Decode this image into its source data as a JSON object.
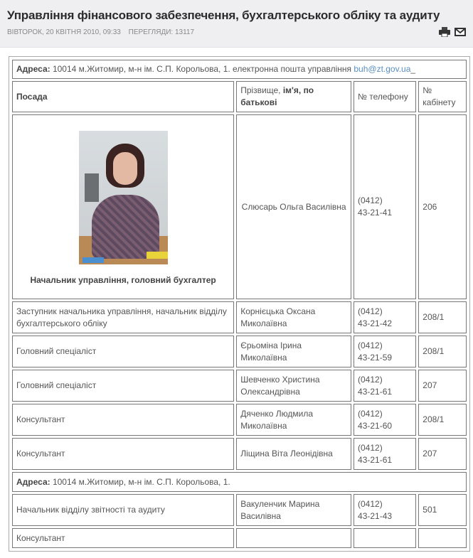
{
  "article": {
    "title": "Управління фінансового забезпечення, бухгалтерського обліку та аудиту",
    "date": "Вівторок, 20 квітня 2010, 09:33",
    "views": "Перегляди: 13117",
    "icons": [
      "print-icon",
      "email-icon"
    ]
  },
  "table": {
    "address1": {
      "label": "Адреса:",
      "text": " 10014 м.Житомир, м-н ім. С.П. Корольова, 1. електронна пошта управління ",
      "email": "buh@zt.gov.ua",
      "suffix": "_"
    },
    "headers": {
      "position": "Посада",
      "name_plain": "Прізвище, ",
      "name_bold": "ім'я, по батькові",
      "phone": "№ телефону",
      "room": "№ кабінету"
    },
    "boss": {
      "position": "Начальник управління, головний бухгалтер",
      "name": "Слюсарь Ольга Василівна",
      "phone1": "(0412)",
      "phone2": "43-21-41",
      "room": "206"
    },
    "rows": [
      {
        "position": "Заступник начальника управління, начальник відділу бухгалтерського обліку",
        "name": "Корнієцька Оксана Миколаївна",
        "phone1": "(0412)",
        "phone2": "43-21-42",
        "room": "208/1"
      },
      {
        "position": "Головний спеціаліст",
        "name": "Єрьоміна Ірина Миколаївна",
        "phone1": "(0412)",
        "phone2": "43-21-59",
        "room": "208/1"
      },
      {
        "position": "Головний спеціаліст",
        "name": "Шевченко Христина Олександрівна",
        "phone1": "(0412)",
        "phone2": "43-21-61",
        "room": "207"
      },
      {
        "position": "Консультант",
        "name": "Дяченко Людмила Миколаївна",
        "phone1": "(0412)",
        "phone2": "43-21-60",
        "room": "208/1"
      },
      {
        "position": "Консультант",
        "name": "Ліщина Віта Леонідівна",
        "phone1": "(0412)",
        "phone2": "43-21-61",
        "room": "207"
      }
    ],
    "address2": {
      "label": "Адреса:",
      "text": " 10014 м.Житомир, м-н ім. С.П. Корольова, 1."
    },
    "rows2": [
      {
        "position": "Начальник відділу звітності та аудиту",
        "name": "Вакуленчик Марина Василівна",
        "phone1": " (0412)",
        "phone2": "43-21-43",
        "room": "501"
      },
      {
        "position": "Консультант",
        "name": "",
        "phone1": "",
        "phone2": "",
        "room": ""
      }
    ]
  }
}
